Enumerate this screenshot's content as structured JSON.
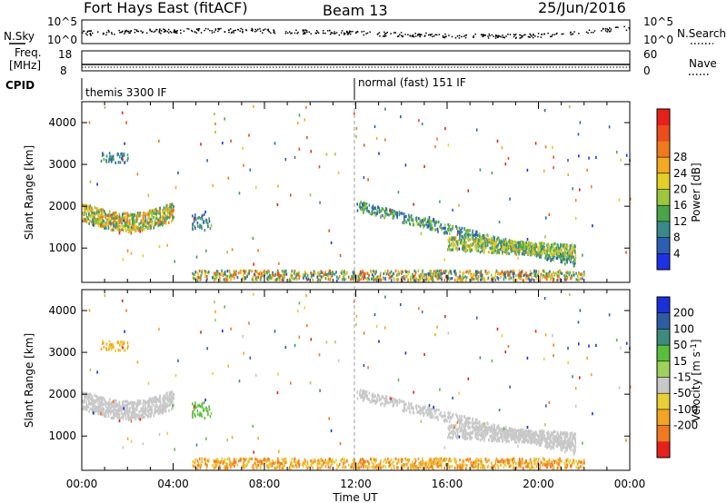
{
  "header": {
    "station": "Fort Hays East (fitACF)",
    "beam": "Beam 13",
    "date": "25/Jun/2016"
  },
  "noise_panel": {
    "left_label": "N.Sky",
    "right_label": "N.Search",
    "yticks_left": [
      "10^5",
      "10^0"
    ],
    "yticks_right": [
      "10^5",
      "10^0"
    ]
  },
  "freq_panel": {
    "left_label_1": "Freq.",
    "left_label_2": "[MHz]",
    "right_label": "Nave",
    "yticks_left": [
      "18",
      "8"
    ],
    "yticks_right": [
      "60",
      "0"
    ]
  },
  "cpid_panel": {
    "label": "CPID",
    "modes": [
      "themis 3300 IF",
      "normal (fast) 151 IF"
    ]
  },
  "chart_data": [
    {
      "type": "heatmap",
      "name": "power",
      "ylabel": "Slant Range [km]",
      "xlabel": "Time UT",
      "xticks": [
        "00:00",
        "04:00",
        "08:00",
        "12:00",
        "16:00",
        "20:00",
        "00:00"
      ],
      "yticks": [
        "1000",
        "2000",
        "3000",
        "4000"
      ],
      "ylim": [
        180,
        4500
      ],
      "xlim_hours": [
        0,
        24
      ],
      "colorbar": {
        "label": "Power [dB]",
        "ticks": [
          "4",
          "8",
          "12",
          "16",
          "20",
          "24",
          "28"
        ],
        "colors": [
          "#1f31e6",
          "#2b5fb3",
          "#3a8a8c",
          "#4aa54a",
          "#9bc83a",
          "#e2d026",
          "#f4a922",
          "#f07a1e",
          "#ec4d1c",
          "#e6201a"
        ]
      }
    },
    {
      "type": "heatmap",
      "name": "velocity",
      "ylabel": "Slant Range [km]",
      "xlabel": "Time UT",
      "xticks": [
        "00:00",
        "04:00",
        "08:00",
        "12:00",
        "16:00",
        "20:00",
        "00:00"
      ],
      "yticks": [
        "1000",
        "2000",
        "3000",
        "4000"
      ],
      "ylim": [
        180,
        4500
      ],
      "colorbar": {
        "label": "Velocity [m s^-1]",
        "ticks": [
          "200",
          "100",
          "50",
          "15",
          "-15",
          "-50",
          "-100",
          "-200"
        ],
        "colors": [
          "#1b2fd8",
          "#2e5ca4",
          "#3f8a7e",
          "#5bbd3c",
          "#9ed15a",
          "#c8c8c8",
          "#e8cf38",
          "#f4a524",
          "#ef7a20",
          "#e6201a"
        ]
      }
    }
  ]
}
